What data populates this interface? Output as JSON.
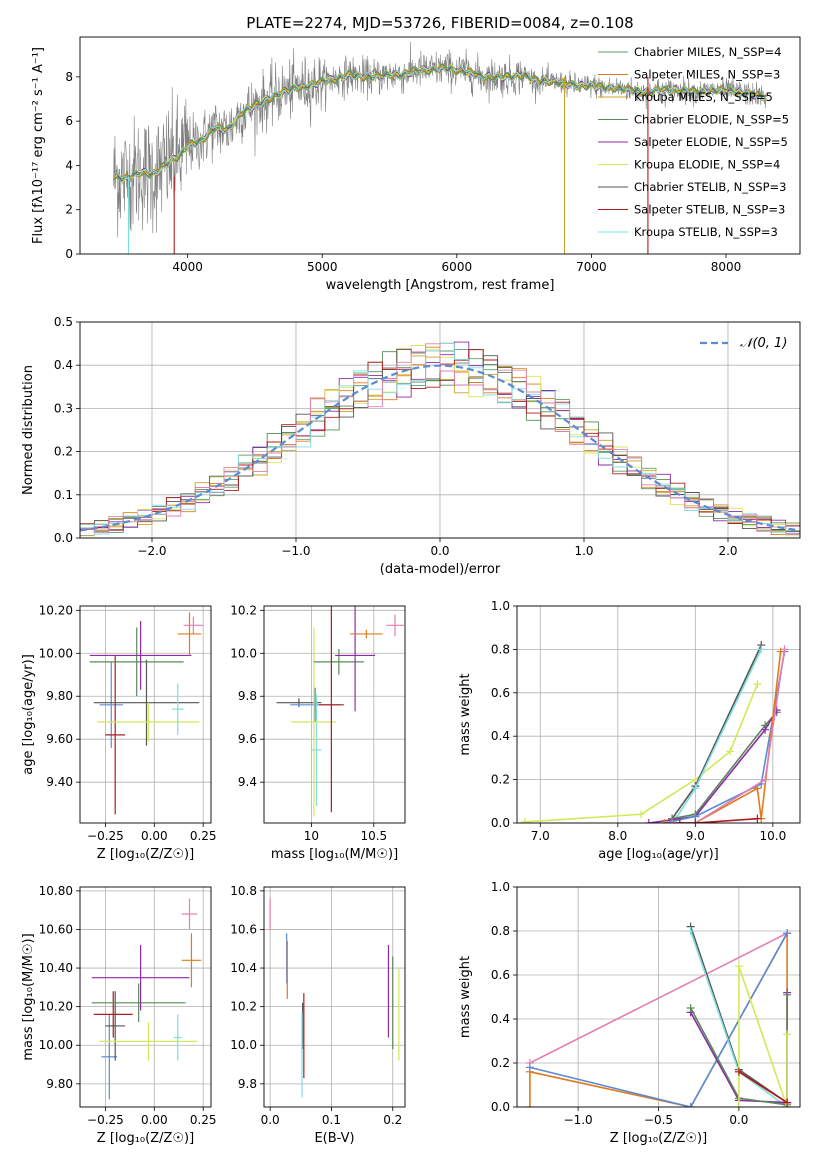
{
  "figure": {
    "title": "PLATE=2274, MJD=53726, FIBERID=0084, z=0.108"
  },
  "colors": {
    "chabrier_miles": "#5f9e6e",
    "salpeter_miles": "#e07a1f",
    "kroupa_miles": "#c9a227",
    "chabrier_elodie": "#5a8a5a",
    "salpeter_elodie": "#8e2ca8",
    "kroupa_elodie": "#d4e85a",
    "chabrier_stelib": "#555555",
    "salpeter_stelib": "#b01c1c",
    "kroupa_stelib": "#7fdde0",
    "blue_model": "#5b8bd6",
    "pink_model": "#e37fb1",
    "data": "#808080"
  },
  "chart_data": [
    {
      "id": "spectrum",
      "type": "line",
      "xlabel": "wavelength [Angstrom, rest frame]",
      "ylabel": "Flux [fλ10⁻¹⁷ erg cm⁻² s⁻¹ A⁻¹]",
      "xlim": [
        3200,
        8550
      ],
      "ylim": [
        0,
        9.8
      ],
      "xticks": [
        4000,
        5000,
        6000,
        7000,
        8000
      ],
      "yticks": [
        0,
        2,
        4,
        6,
        8
      ],
      "grid": false,
      "legend_position": "top-right",
      "continuum": {
        "x": [
          3450,
          3550,
          3650,
          3750,
          3850,
          3950,
          4000,
          4100,
          4200,
          4300,
          4400,
          4500,
          4600,
          4700,
          4800,
          4900,
          5000,
          5100,
          5200,
          5300,
          5400,
          5500,
          5600,
          5700,
          5800,
          5900,
          6000,
          6100,
          6200,
          6300,
          6400,
          6500,
          6600,
          6700,
          6800,
          6900,
          7000,
          7100,
          7200,
          7300,
          7400,
          7500,
          7600,
          7700,
          7800,
          7900,
          8000,
          8100,
          8200,
          8300
        ],
        "y": [
          3.5,
          3.4,
          3.7,
          3.6,
          4.1,
          4.5,
          4.9,
          5.1,
          5.7,
          5.6,
          6.4,
          6.7,
          7.0,
          7.3,
          7.5,
          7.6,
          7.8,
          7.9,
          8.1,
          8.0,
          8.0,
          8.1,
          8.1,
          8.3,
          8.3,
          8.4,
          8.3,
          8.2,
          8.0,
          8.0,
          8.0,
          8.1,
          7.8,
          7.8,
          7.7,
          7.6,
          7.6,
          7.5,
          7.5,
          7.4,
          7.3,
          7.4,
          7.4,
          7.4,
          7.3,
          7.4,
          7.4,
          7.3,
          7.2,
          7.1
        ]
      },
      "series": [
        {
          "name": "Chabrier MILES, N_SSP=4",
          "color_key": "chabrier_miles"
        },
        {
          "name": "Salpeter MILES, N_SSP=3",
          "color_key": "salpeter_miles"
        },
        {
          "name": "Kroupa MILES, N_SSP=5",
          "color_key": "kroupa_miles"
        },
        {
          "name": "Chabrier ELODIE, N_SSP=5",
          "color_key": "chabrier_elodie"
        },
        {
          "name": "Salpeter ELODIE, N_SSP=5",
          "color_key": "salpeter_elodie"
        },
        {
          "name": "Kroupa ELODIE, N_SSP=4",
          "color_key": "kroupa_elodie"
        },
        {
          "name": "Chabrier STELIB, N_SSP=3",
          "color_key": "chabrier_stelib"
        },
        {
          "name": "Salpeter STELIB, N_SSP=3",
          "color_key": "salpeter_stelib"
        },
        {
          "name": "Kroupa STELIB, N_SSP=3",
          "color_key": "kroupa_stelib"
        }
      ]
    },
    {
      "id": "residuals",
      "type": "line",
      "xlabel": "(data-model)/error",
      "ylabel": "Normed distribution",
      "xlim": [
        -2.5,
        2.5
      ],
      "ylim": [
        0,
        0.5
      ],
      "xticks": [
        -2,
        -1,
        0,
        1,
        2
      ],
      "yticks": [
        0.0,
        0.1,
        0.2,
        0.3,
        0.4,
        0.5
      ],
      "grid": true,
      "legend_position": "top-right",
      "reference": {
        "name": "𝒩(0, 1)",
        "mean": 0,
        "sigma": 1,
        "color_key": "blue_model",
        "dashed": true
      },
      "bin_width": 0.1
    },
    {
      "id": "age_vs_Z",
      "type": "scatter",
      "xlabel": "Z [log₁₀(Z/Z☉)]",
      "ylabel": "age  [log₁₀(age/yr)]",
      "xlim": [
        -0.38,
        0.29
      ],
      "ylim": [
        9.21,
        10.22
      ],
      "xticks": [
        -0.25,
        0.0,
        0.25
      ],
      "yticks": [
        9.4,
        9.6,
        9.8,
        10.0,
        10.2
      ],
      "grid": true,
      "points": [
        {
          "color_key": "blue_model",
          "x": -0.22,
          "xerr": 0.06,
          "y": 9.76,
          "yerr": 0.2
        },
        {
          "color_key": "salpeter_stelib",
          "x": -0.2,
          "xerr": 0.05,
          "y": 9.62,
          "yerr": 0.37
        },
        {
          "color_key": "chabrier_stelib",
          "x": -0.04,
          "xerr": 0.27,
          "y": 9.77,
          "yerr": 0.2
        },
        {
          "color_key": "chabrier_elodie",
          "x": -0.09,
          "xerr": 0.24,
          "y": 9.96,
          "yerr": 0.16
        },
        {
          "color_key": "salpeter_elodie",
          "x": -0.07,
          "xerr": 0.26,
          "y": 9.99,
          "yerr": 0.16
        },
        {
          "color_key": "kroupa_elodie",
          "x": -0.03,
          "xerr": 0.26,
          "y": 9.68,
          "yerr": 0.09
        },
        {
          "color_key": "salpeter_miles",
          "x": 0.18,
          "xerr": 0.06,
          "y": 10.09,
          "yerr": 0.1
        },
        {
          "color_key": "pink_model",
          "x": 0.2,
          "xerr": 0.05,
          "y": 10.13,
          "yerr": 0.04
        },
        {
          "color_key": "kroupa_stelib",
          "x": 0.12,
          "xerr": 0.03,
          "y": 9.74,
          "yerr": 0.12
        }
      ]
    },
    {
      "id": "age_vs_mass",
      "type": "scatter",
      "xlabel": "mass [log₁₀(M/M☉)]",
      "ylabel": "",
      "xlim": [
        9.62,
        10.75
      ],
      "ylim": [
        9.21,
        10.22
      ],
      "xticks": [
        10.0,
        10.5
      ],
      "yticks": [
        9.4,
        9.6,
        9.8,
        10.0,
        10.2
      ],
      "grid": true,
      "points": [
        {
          "color_key": "chabrier_stelib",
          "x": 9.9,
          "xerr": 0.18,
          "y": 9.77,
          "yerr": 0.02
        },
        {
          "color_key": "blue_model",
          "x": 10.03,
          "xerr": 0.2,
          "y": 9.76,
          "yerr": 0.08
        },
        {
          "color_key": "kroupa_stelib",
          "x": 10.04,
          "xerr": 0.04,
          "y": 9.55,
          "yerr": 0.26
        },
        {
          "color_key": "kroupa_elodie",
          "x": 10.02,
          "xerr": 0.18,
          "y": 9.68,
          "yerr": 0.44
        },
        {
          "color_key": "chabrier_elodie",
          "x": 10.22,
          "xerr": 0.2,
          "y": 9.96,
          "yerr": 0.06
        },
        {
          "color_key": "salpeter_stelib",
          "x": 10.16,
          "xerr": 0.1,
          "y": 9.76,
          "yerr": 0.5
        },
        {
          "color_key": "salpeter_elodie",
          "x": 10.35,
          "xerr": 0.16,
          "y": 9.99,
          "yerr": 0.26
        },
        {
          "color_key": "salpeter_miles",
          "x": 10.44,
          "xerr": 0.13,
          "y": 10.09,
          "yerr": 0.02
        },
        {
          "color_key": "pink_model",
          "x": 10.67,
          "xerr": 0.07,
          "y": 10.13,
          "yerr": 0.05
        }
      ]
    },
    {
      "id": "weight_vs_age",
      "type": "line",
      "xlabel": "age  [log₁₀(age/yr)]",
      "ylabel": "mass weight",
      "xlim": [
        6.7,
        10.35
      ],
      "ylim": [
        0,
        1.0
      ],
      "xticks": [
        7,
        8,
        9,
        10
      ],
      "yticks": [
        0.0,
        0.2,
        0.4,
        0.6,
        0.8,
        1.0
      ],
      "grid": true,
      "series": [
        {
          "color_key": "kroupa_elodie",
          "x": [
            6.8,
            8.3,
            9.0,
            9.45,
            9.8
          ],
          "y": [
            0.005,
            0.04,
            0.2,
            0.33,
            0.64
          ]
        },
        {
          "color_key": "chabrier_stelib",
          "x": [
            8.7,
            9.0,
            9.85
          ],
          "y": [
            0.02,
            0.17,
            0.82
          ]
        },
        {
          "color_key": "kroupa_stelib",
          "x": [
            8.75,
            9.0,
            9.85
          ],
          "y": [
            0.02,
            0.16,
            0.8
          ]
        },
        {
          "color_key": "chabrier_elodie",
          "x": [
            8.7,
            9.0,
            9.9,
            10.05
          ],
          "y": [
            0.02,
            0.04,
            0.45,
            0.51
          ]
        },
        {
          "color_key": "salpeter_elodie",
          "x": [
            8.4,
            9.0,
            9.9,
            10.05
          ],
          "y": [
            0.0,
            0.03,
            0.43,
            0.52
          ]
        },
        {
          "color_key": "blue_model",
          "x": [
            8.6,
            9.0,
            9.85,
            10.15
          ],
          "y": [
            0.0,
            0.03,
            0.18,
            0.79
          ]
        },
        {
          "color_key": "salpeter_miles",
          "x": [
            8.6,
            9.0,
            9.8,
            9.85,
            10.1
          ],
          "y": [
            0.0,
            0.0,
            0.16,
            0.02,
            0.79
          ]
        },
        {
          "color_key": "pink_model",
          "x": [
            8.7,
            9.0,
            9.9,
            10.15
          ],
          "y": [
            0.0,
            0.0,
            0.2,
            0.8
          ]
        },
        {
          "color_key": "salpeter_stelib",
          "x": [
            8.8,
            9.0,
            9.8
          ],
          "y": [
            0.0,
            0.0,
            0.02
          ]
        }
      ]
    },
    {
      "id": "mass_vs_Z",
      "type": "scatter",
      "xlabel": "Z [log₁₀(Z/Z☉)]",
      "ylabel": "mass [log₁₀(M/M☉)]",
      "xlim": [
        -0.38,
        0.29
      ],
      "ylim": [
        9.68,
        10.82
      ],
      "xticks": [
        -0.25,
        0.0,
        0.25
      ],
      "yticks": [
        9.8,
        10.0,
        10.2,
        10.4,
        10.6,
        10.8
      ],
      "grid": true,
      "points": [
        {
          "color_key": "blue_model",
          "x": -0.23,
          "xerr": 0.04,
          "y": 9.94,
          "yerr": 0.22
        },
        {
          "color_key": "salpeter_stelib",
          "x": -0.21,
          "xerr": 0.1,
          "y": 10.16,
          "yerr": 0.12
        },
        {
          "color_key": "chabrier_stelib",
          "x": -0.2,
          "xerr": 0.05,
          "y": 10.1,
          "yerr": 0.18
        },
        {
          "color_key": "chabrier_elodie",
          "x": -0.08,
          "xerr": 0.24,
          "y": 10.22,
          "yerr": 0.1
        },
        {
          "color_key": "salpeter_elodie",
          "x": -0.07,
          "xerr": 0.25,
          "y": 10.35,
          "yerr": 0.17
        },
        {
          "color_key": "kroupa_elodie",
          "x": -0.03,
          "xerr": 0.25,
          "y": 10.02,
          "yerr": 0.1
        },
        {
          "color_key": "kroupa_stelib",
          "x": 0.12,
          "xerr": 0.02,
          "y": 10.04,
          "yerr": 0.12
        },
        {
          "color_key": "salpeter_miles",
          "x": 0.19,
          "xerr": 0.05,
          "y": 10.44,
          "yerr": 0.14
        },
        {
          "color_key": "pink_model",
          "x": 0.18,
          "xerr": 0.04,
          "y": 10.68,
          "yerr": 0.08
        }
      ]
    },
    {
      "id": "mass_vs_ebv",
      "type": "scatter",
      "xlabel": "E(B-V)",
      "ylabel": "",
      "xlim": [
        -0.01,
        0.22
      ],
      "ylim": [
        9.68,
        10.82
      ],
      "xticks": [
        0.0,
        0.1,
        0.2
      ],
      "yticks": [
        9.8,
        10.0,
        10.2,
        10.4,
        10.6,
        10.8
      ],
      "grid": true,
      "points": [
        {
          "color_key": "pink_model",
          "x": 0.0,
          "y": 10.68,
          "yerr": 0.08
        },
        {
          "color_key": "blue_model",
          "x": 0.027,
          "y": 10.45,
          "yerr": 0.13
        },
        {
          "color_key": "salpeter_miles",
          "x": 0.028,
          "y": 10.39,
          "yerr": 0.15
        },
        {
          "color_key": "chabrier_stelib",
          "x": 0.053,
          "y": 10.1,
          "yerr": 0.12
        },
        {
          "color_key": "salpeter_stelib",
          "x": 0.055,
          "y": 10.05,
          "yerr": 0.22
        },
        {
          "color_key": "kroupa_stelib",
          "x": 0.052,
          "y": 9.95,
          "yerr": 0.22
        },
        {
          "color_key": "salpeter_elodie",
          "x": 0.193,
          "y": 10.28,
          "yerr": 0.24
        },
        {
          "color_key": "chabrier_elodie",
          "x": 0.2,
          "y": 10.22,
          "yerr": 0.24
        },
        {
          "color_key": "kroupa_elodie",
          "x": 0.21,
          "y": 10.16,
          "yerr": 0.24
        }
      ]
    },
    {
      "id": "weight_vs_Z",
      "type": "line",
      "xlabel": "Z [log₁₀(Z/Z☉)]",
      "ylabel": "mass weight",
      "xlim": [
        -1.38,
        0.38
      ],
      "ylim": [
        0,
        1.0
      ],
      "xticks": [
        -1.0,
        -0.5,
        0.0
      ],
      "yticks": [
        0.0,
        0.2,
        0.4,
        0.6,
        0.8,
        1.0
      ],
      "grid": true,
      "series": [
        {
          "color_key": "pink_model",
          "x": [
            -1.3,
            0.3
          ],
          "y": [
            0.2,
            0.79
          ]
        },
        {
          "color_key": "salpeter_miles",
          "x": [
            -1.3,
            -1.3,
            -0.3,
            0.3,
            0.3
          ],
          "y": [
            0.0,
            0.16,
            0.0,
            0.79,
            0.0
          ]
        },
        {
          "color_key": "blue_model",
          "x": [
            -1.3,
            -0.3,
            0.3
          ],
          "y": [
            0.18,
            0.0,
            0.79
          ]
        },
        {
          "color_key": "chabrier_stelib",
          "x": [
            -0.3,
            0.0,
            0.3
          ],
          "y": [
            0.82,
            0.17,
            0.02
          ]
        },
        {
          "color_key": "kroupa_stelib",
          "x": [
            -0.3,
            0.0,
            0.3
          ],
          "y": [
            0.8,
            0.16,
            0.0
          ]
        },
        {
          "color_key": "salpeter_elodie",
          "x": [
            -0.3,
            0.0,
            0.3,
            0.3
          ],
          "y": [
            0.43,
            0.03,
            0.02,
            0.52
          ]
        },
        {
          "color_key": "chabrier_elodie",
          "x": [
            -0.3,
            0.0,
            0.3,
            0.3
          ],
          "y": [
            0.45,
            0.04,
            0.01,
            0.51
          ]
        },
        {
          "color_key": "kroupa_elodie",
          "x": [
            0.0,
            0.0,
            0.3,
            0.3
          ],
          "y": [
            0.0,
            0.64,
            0.0,
            0.33
          ]
        },
        {
          "color_key": "salpeter_stelib",
          "x": [
            0.0,
            0.3
          ],
          "y": [
            0.16,
            0.02
          ]
        }
      ]
    }
  ]
}
